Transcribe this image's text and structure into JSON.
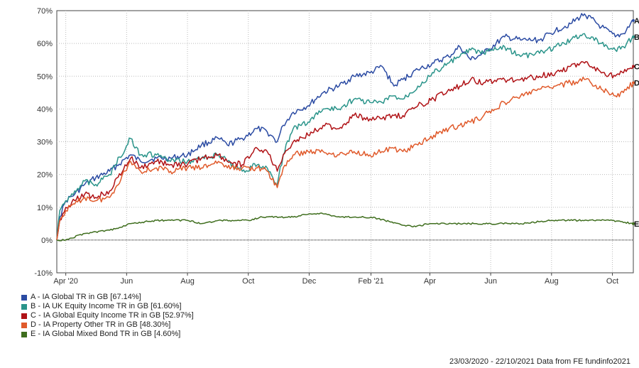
{
  "chart_data": {
    "type": "line",
    "y_unit": "%",
    "ylim": [
      -10,
      70
    ],
    "y_ticks": [
      "70%",
      "60%",
      "50%",
      "40%",
      "30%",
      "20%",
      "10%",
      "0%",
      "-10%"
    ],
    "x_range": [
      "2020-03-23",
      "2021-10-22"
    ],
    "x_ticks": [
      {
        "label": "Apr '20",
        "date": "2020-04-01"
      },
      {
        "label": "Jun",
        "date": "2020-06-01"
      },
      {
        "label": "Aug",
        "date": "2020-08-01"
      },
      {
        "label": "Oct",
        "date": "2020-10-01"
      },
      {
        "label": "Dec",
        "date": "2020-12-01"
      },
      {
        "label": "Feb '21",
        "date": "2021-02-01"
      },
      {
        "label": "Apr",
        "date": "2021-04-01"
      },
      {
        "label": "Jun",
        "date": "2021-06-01"
      },
      {
        "label": "Aug",
        "date": "2021-08-01"
      },
      {
        "label": "Oct",
        "date": "2021-10-01"
      }
    ],
    "grid": true,
    "series": [
      {
        "key": "A",
        "name": "A - IA Global TR in GB [67.14%]",
        "color": "#2b4ba3",
        "points": [
          [
            "2020-03-23",
            0
          ],
          [
            "2020-03-26",
            7
          ],
          [
            "2020-04-01",
            12
          ],
          [
            "2020-04-10",
            14
          ],
          [
            "2020-04-20",
            17
          ],
          [
            "2020-05-01",
            19
          ],
          [
            "2020-05-15",
            21
          ],
          [
            "2020-06-05",
            26
          ],
          [
            "2020-06-15",
            24
          ],
          [
            "2020-07-01",
            25
          ],
          [
            "2020-07-15",
            25
          ],
          [
            "2020-08-01",
            26
          ],
          [
            "2020-08-15",
            29
          ],
          [
            "2020-09-01",
            31
          ],
          [
            "2020-09-10",
            29
          ],
          [
            "2020-09-25",
            31
          ],
          [
            "2020-10-10",
            34
          ],
          [
            "2020-10-20",
            33
          ],
          [
            "2020-10-30",
            30
          ],
          [
            "2020-11-05",
            35
          ],
          [
            "2020-11-15",
            39
          ],
          [
            "2020-11-30",
            41
          ],
          [
            "2020-12-15",
            45
          ],
          [
            "2020-12-31",
            47
          ],
          [
            "2021-01-15",
            50
          ],
          [
            "2021-01-31",
            51
          ],
          [
            "2021-02-12",
            53
          ],
          [
            "2021-02-24",
            47
          ],
          [
            "2021-03-05",
            49
          ],
          [
            "2021-03-20",
            52
          ],
          [
            "2021-04-05",
            54
          ],
          [
            "2021-04-20",
            56
          ],
          [
            "2021-05-01",
            59
          ],
          [
            "2021-05-12",
            55
          ],
          [
            "2021-05-25",
            57
          ],
          [
            "2021-06-15",
            62
          ],
          [
            "2021-07-01",
            61
          ],
          [
            "2021-07-20",
            61
          ],
          [
            "2021-08-05",
            64
          ],
          [
            "2021-08-20",
            66
          ],
          [
            "2021-09-03",
            69
          ],
          [
            "2021-09-20",
            65
          ],
          [
            "2021-10-04",
            62
          ],
          [
            "2021-10-12",
            63
          ],
          [
            "2021-10-22",
            67
          ]
        ]
      },
      {
        "key": "B",
        "name": "B - IA UK Equity Income TR in GB [61.60%]",
        "color": "#2a948a",
        "points": [
          [
            "2020-03-23",
            0
          ],
          [
            "2020-03-26",
            9
          ],
          [
            "2020-04-01",
            12
          ],
          [
            "2020-04-10",
            15
          ],
          [
            "2020-04-20",
            18
          ],
          [
            "2020-05-01",
            17
          ],
          [
            "2020-05-15",
            20
          ],
          [
            "2020-06-05",
            31
          ],
          [
            "2020-06-15",
            26
          ],
          [
            "2020-07-01",
            26
          ],
          [
            "2020-07-15",
            24
          ],
          [
            "2020-08-01",
            24
          ],
          [
            "2020-08-15",
            25
          ],
          [
            "2020-09-01",
            26
          ],
          [
            "2020-09-10",
            24
          ],
          [
            "2020-09-25",
            21
          ],
          [
            "2020-10-10",
            23
          ],
          [
            "2020-10-20",
            22
          ],
          [
            "2020-10-30",
            17
          ],
          [
            "2020-11-05",
            26
          ],
          [
            "2020-11-15",
            34
          ],
          [
            "2020-11-30",
            36
          ],
          [
            "2020-12-15",
            40
          ],
          [
            "2020-12-31",
            40
          ],
          [
            "2021-01-15",
            43
          ],
          [
            "2021-01-31",
            42
          ],
          [
            "2021-02-12",
            42
          ],
          [
            "2021-02-24",
            44
          ],
          [
            "2021-03-05",
            43
          ],
          [
            "2021-03-20",
            47
          ],
          [
            "2021-04-05",
            51
          ],
          [
            "2021-04-20",
            54
          ],
          [
            "2021-05-01",
            56
          ],
          [
            "2021-05-12",
            58
          ],
          [
            "2021-05-25",
            57
          ],
          [
            "2021-06-15",
            59
          ],
          [
            "2021-07-01",
            56
          ],
          [
            "2021-07-20",
            57
          ],
          [
            "2021-08-05",
            59
          ],
          [
            "2021-08-20",
            61
          ],
          [
            "2021-09-03",
            63
          ],
          [
            "2021-09-20",
            60
          ],
          [
            "2021-10-04",
            58
          ],
          [
            "2021-10-12",
            59
          ],
          [
            "2021-10-22",
            62
          ]
        ]
      },
      {
        "key": "C",
        "name": "C - IA Global Equity Income TR in GB [52.97%]",
        "color": "#b01216",
        "points": [
          [
            "2020-03-23",
            0
          ],
          [
            "2020-03-26",
            6
          ],
          [
            "2020-04-01",
            10
          ],
          [
            "2020-04-10",
            12
          ],
          [
            "2020-04-20",
            14
          ],
          [
            "2020-05-01",
            13
          ],
          [
            "2020-05-15",
            15
          ],
          [
            "2020-06-05",
            25
          ],
          [
            "2020-06-15",
            22
          ],
          [
            "2020-07-01",
            24
          ],
          [
            "2020-07-15",
            23
          ],
          [
            "2020-08-01",
            23
          ],
          [
            "2020-08-15",
            25
          ],
          [
            "2020-09-01",
            26
          ],
          [
            "2020-09-10",
            24
          ],
          [
            "2020-09-25",
            23
          ],
          [
            "2020-10-10",
            28
          ],
          [
            "2020-10-20",
            27
          ],
          [
            "2020-10-30",
            21
          ],
          [
            "2020-11-05",
            26
          ],
          [
            "2020-11-15",
            30
          ],
          [
            "2020-11-30",
            32
          ],
          [
            "2020-12-15",
            35
          ],
          [
            "2020-12-31",
            34
          ],
          [
            "2021-01-15",
            38
          ],
          [
            "2021-01-31",
            37
          ],
          [
            "2021-02-12",
            37
          ],
          [
            "2021-02-24",
            38
          ],
          [
            "2021-03-05",
            38
          ],
          [
            "2021-03-20",
            41
          ],
          [
            "2021-04-05",
            43
          ],
          [
            "2021-04-20",
            46
          ],
          [
            "2021-05-01",
            47
          ],
          [
            "2021-05-12",
            49
          ],
          [
            "2021-05-25",
            48
          ],
          [
            "2021-06-15",
            49
          ],
          [
            "2021-07-01",
            49
          ],
          [
            "2021-07-20",
            50
          ],
          [
            "2021-08-05",
            51
          ],
          [
            "2021-08-20",
            53
          ],
          [
            "2021-09-03",
            54
          ],
          [
            "2021-09-20",
            51
          ],
          [
            "2021-10-04",
            50
          ],
          [
            "2021-10-12",
            51
          ],
          [
            "2021-10-22",
            53
          ]
        ]
      },
      {
        "key": "D",
        "name": "D - IA Property Other TR in GB [48.30%]",
        "color": "#e05a2b",
        "points": [
          [
            "2020-03-23",
            0
          ],
          [
            "2020-03-26",
            6
          ],
          [
            "2020-04-01",
            9
          ],
          [
            "2020-04-10",
            11
          ],
          [
            "2020-04-20",
            13
          ],
          [
            "2020-05-01",
            12
          ],
          [
            "2020-05-15",
            13
          ],
          [
            "2020-06-05",
            24
          ],
          [
            "2020-06-15",
            21
          ],
          [
            "2020-07-01",
            22
          ],
          [
            "2020-07-15",
            21
          ],
          [
            "2020-08-01",
            22
          ],
          [
            "2020-08-15",
            22
          ],
          [
            "2020-09-01",
            24
          ],
          [
            "2020-09-10",
            22
          ],
          [
            "2020-09-25",
            22
          ],
          [
            "2020-10-10",
            22
          ],
          [
            "2020-10-20",
            21
          ],
          [
            "2020-10-30",
            16
          ],
          [
            "2020-11-05",
            22
          ],
          [
            "2020-11-15",
            26
          ],
          [
            "2020-11-30",
            27
          ],
          [
            "2020-12-15",
            27
          ],
          [
            "2020-12-31",
            26
          ],
          [
            "2021-01-15",
            27
          ],
          [
            "2021-01-31",
            26
          ],
          [
            "2021-02-12",
            27
          ],
          [
            "2021-02-24",
            28
          ],
          [
            "2021-03-05",
            27
          ],
          [
            "2021-03-20",
            29
          ],
          [
            "2021-04-05",
            32
          ],
          [
            "2021-04-20",
            34
          ],
          [
            "2021-05-01",
            35
          ],
          [
            "2021-05-12",
            36
          ],
          [
            "2021-05-25",
            38
          ],
          [
            "2021-06-15",
            42
          ],
          [
            "2021-07-01",
            44
          ],
          [
            "2021-07-20",
            46
          ],
          [
            "2021-08-05",
            47
          ],
          [
            "2021-08-20",
            48
          ],
          [
            "2021-09-03",
            49
          ],
          [
            "2021-09-20",
            46
          ],
          [
            "2021-10-04",
            44
          ],
          [
            "2021-10-12",
            45
          ],
          [
            "2021-10-22",
            48
          ]
        ]
      },
      {
        "key": "E",
        "name": "E - IA Global Mixed Bond TR in GB [4.60%]",
        "color": "#3f6e1e",
        "points": [
          [
            "2020-03-23",
            0
          ],
          [
            "2020-04-01",
            0
          ],
          [
            "2020-04-20",
            2
          ],
          [
            "2020-05-15",
            3
          ],
          [
            "2020-06-05",
            5
          ],
          [
            "2020-07-01",
            6
          ],
          [
            "2020-07-15",
            6
          ],
          [
            "2020-08-01",
            6
          ],
          [
            "2020-08-15",
            5
          ],
          [
            "2020-09-01",
            6
          ],
          [
            "2020-09-15",
            6
          ],
          [
            "2020-10-01",
            6
          ],
          [
            "2020-10-15",
            7
          ],
          [
            "2020-11-01",
            7
          ],
          [
            "2020-11-15",
            7
          ],
          [
            "2020-12-01",
            8
          ],
          [
            "2020-12-15",
            8
          ],
          [
            "2021-01-01",
            7
          ],
          [
            "2021-01-15",
            7
          ],
          [
            "2021-02-01",
            7
          ],
          [
            "2021-02-15",
            6
          ],
          [
            "2021-03-01",
            5
          ],
          [
            "2021-03-15",
            4
          ],
          [
            "2021-04-01",
            5
          ],
          [
            "2021-05-01",
            5
          ],
          [
            "2021-06-01",
            5
          ],
          [
            "2021-07-01",
            5
          ],
          [
            "2021-08-01",
            6
          ],
          [
            "2021-09-01",
            6
          ],
          [
            "2021-10-01",
            6
          ],
          [
            "2021-10-22",
            5
          ]
        ]
      }
    ]
  },
  "footer_text": "23/03/2020 - 22/10/2021 Data from FE fundinfo2021"
}
